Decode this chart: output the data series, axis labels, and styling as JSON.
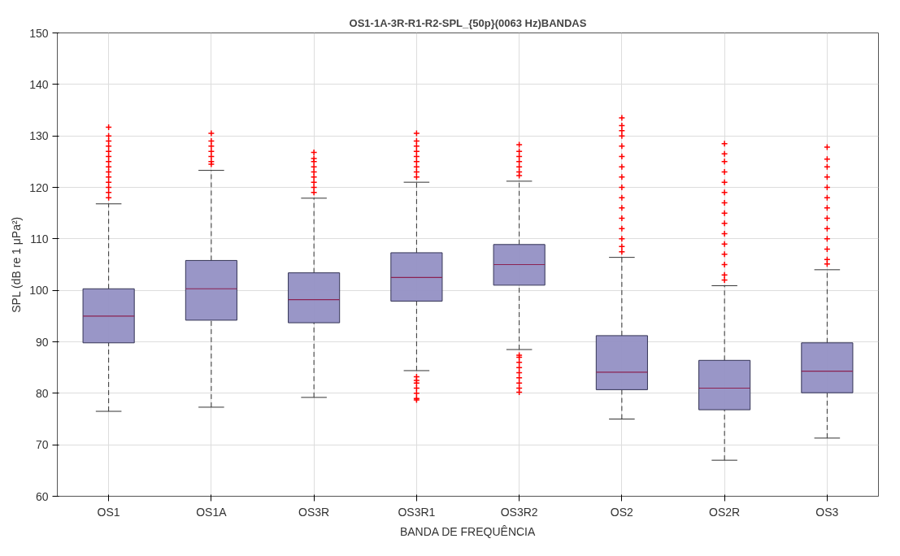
{
  "chart_data": {
    "type": "box",
    "title": "OS1-1A-3R-R1-R2-SPL_{50p}(0063 Hz)BANDAS",
    "xlabel": "BANDA DE FREQUÊNCIA",
    "ylabel": "SPL (dB re 1 μPa²)",
    "categories": [
      "OS1",
      "OS1A",
      "OS3R",
      "OS3R1",
      "OS3R2",
      "OS2",
      "OS2R",
      "OS3"
    ],
    "ylim": [
      60,
      150
    ],
    "yticks": [
      60,
      70,
      80,
      90,
      100,
      110,
      120,
      130,
      140,
      150
    ],
    "grid": true,
    "marker": "cross",
    "series": [
      {
        "color": "#9490c4",
        "boxes": [
          {
            "low": 76.5,
            "q1": 89.8,
            "median": 95,
            "q3": 100.3,
            "high": 116.8,
            "outliers": [
              118,
              119,
              120,
              121,
              122,
              123,
              124,
              125,
              126,
              127,
              128,
              129,
              130,
              131.7
            ]
          },
          {
            "low": 77.3,
            "q1": 94.2,
            "median": 100.3,
            "q3": 105.8,
            "high": 123.3,
            "outliers": [
              124.5,
              125,
              126,
              127,
              128,
              129,
              130.5
            ]
          },
          {
            "low": 79.2,
            "q1": 93.7,
            "median": 98.2,
            "q3": 103.4,
            "high": 117.9,
            "outliers": [
              119,
              120,
              121,
              122,
              123,
              124,
              125,
              125.6,
              126.8
            ]
          },
          {
            "low": 84.4,
            "q1": 97.9,
            "median": 102.5,
            "q3": 107.3,
            "high": 121,
            "outliers": [
              122,
              123,
              124,
              125,
              126,
              127,
              128,
              129,
              130.5,
              83.2,
              82.5,
              82,
              81,
              80,
              79,
              78.7
            ]
          },
          {
            "low": 88.5,
            "q1": 101,
            "median": 105,
            "q3": 108.9,
            "high": 121.2,
            "outliers": [
              122.3,
              123,
              124,
              125,
              126,
              127,
              128.3,
              87.4,
              87,
              86,
              85,
              84,
              83,
              82,
              81,
              80.2
            ]
          },
          {
            "low": 75,
            "q1": 80.7,
            "median": 84.1,
            "q3": 91.2,
            "high": 106.4,
            "outliers": [
              107.5,
              108.5,
              110,
              112,
              114,
              116,
              118,
              120,
              122,
              124,
              126,
              128,
              130,
              131,
              132,
              133.5
            ]
          },
          {
            "low": 67,
            "q1": 76.8,
            "median": 81,
            "q3": 86.4,
            "high": 100.9,
            "outliers": [
              102,
              103,
              105,
              107,
              109,
              111,
              113,
              115,
              117,
              119,
              121,
              123,
              125,
              126.5,
              128.5
            ]
          },
          {
            "low": 71.3,
            "q1": 80.1,
            "median": 84.3,
            "q3": 89.8,
            "high": 104,
            "outliers": [
              105.1,
              106,
              108,
              110,
              112,
              114,
              116,
              118,
              120,
              122,
              124,
              125.5,
              127.8
            ]
          }
        ]
      }
    ]
  }
}
